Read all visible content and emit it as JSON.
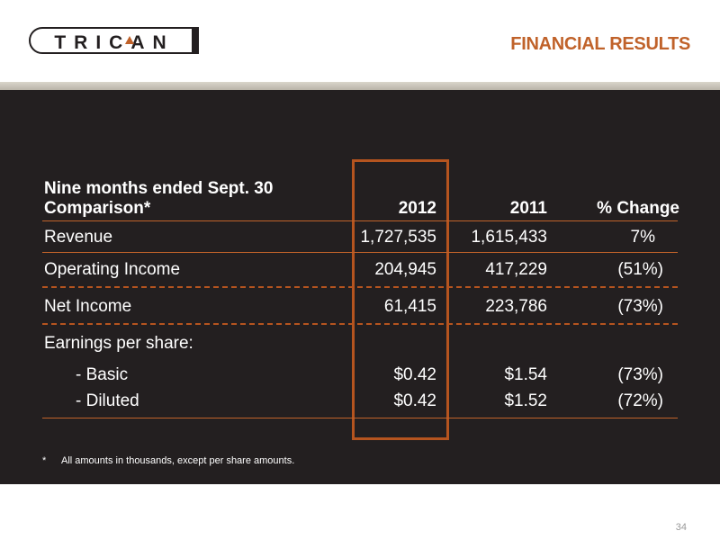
{
  "logo": {
    "text": "TRICAN"
  },
  "header": {
    "section_title": "FINANCIAL RESULTS"
  },
  "table": {
    "header_label_line1": "Nine months ended Sept. 30",
    "header_label_line2": "Comparison*",
    "col_2012": "2012",
    "col_2011": "2011",
    "col_change": "% Change",
    "rows": [
      {
        "label": "Revenue",
        "v2012": "1,727,535",
        "v2011": "1,615,433",
        "change": "7%"
      },
      {
        "label": "Operating Income",
        "v2012": "204,945",
        "v2011": "417,229",
        "change": "(51%)"
      },
      {
        "label": "Net Income",
        "v2012": "61,415",
        "v2011": "223,786",
        "change": "(73%)"
      },
      {
        "label": "Earnings per share:",
        "v2012": "",
        "v2011": "",
        "change": ""
      },
      {
        "label": "- Basic",
        "v2012": "$0.42",
        "v2011": "$1.54",
        "change": "(73%)"
      },
      {
        "label": "- Diluted",
        "v2012": "$0.42",
        "v2011": "$1.52",
        "change": "(72%)"
      }
    ]
  },
  "footnote": {
    "marker": "*",
    "text": "All amounts in thousands, except per share amounts."
  },
  "page_number": "34",
  "colors": {
    "accent": "#c0622a",
    "panel": "#231f20",
    "band": "#cfcac0"
  }
}
